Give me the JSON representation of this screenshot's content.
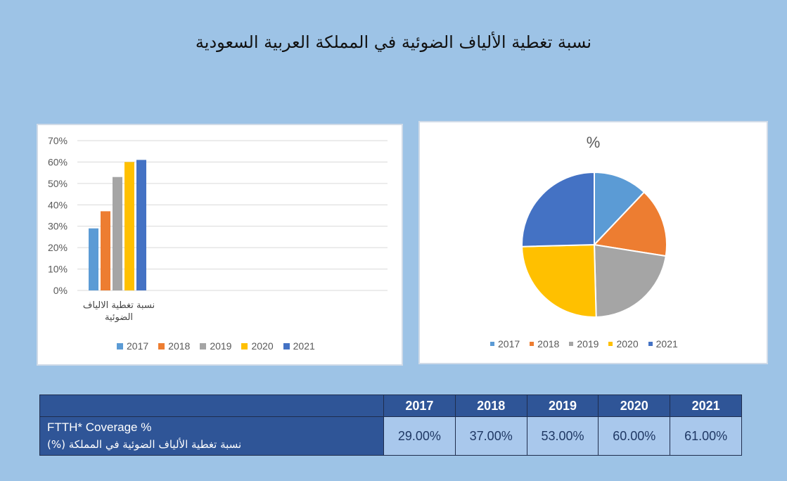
{
  "title": "نسبة تغطية الألياف الضوئية في المملكة العربية السعودية",
  "colors": {
    "2017": "#5b9bd5",
    "2018": "#ed7d31",
    "2019": "#a5a5a5",
    "2020": "#ffc000",
    "2021": "#4472c4",
    "background": "#9dc3e6",
    "table_header": "#2f5597",
    "table_cell": "#a9c8ec"
  },
  "chart_data": [
    {
      "type": "bar",
      "categories": [
        "نسبة تغطية الالياف الضوئية"
      ],
      "series": [
        {
          "name": "2017",
          "values": [
            29
          ]
        },
        {
          "name": "2018",
          "values": [
            37
          ]
        },
        {
          "name": "2019",
          "values": [
            53
          ]
        },
        {
          "name": "2020",
          "values": [
            60
          ]
        },
        {
          "name": "2021",
          "values": [
            61
          ]
        }
      ],
      "y_ticks": [
        "0%",
        "10%",
        "20%",
        "30%",
        "40%",
        "50%",
        "60%",
        "70%"
      ],
      "ylim": [
        0,
        70
      ],
      "grid": true,
      "legend": "bottom"
    },
    {
      "type": "pie",
      "title": "%",
      "labels": [
        "2017",
        "2018",
        "2019",
        "2020",
        "2021"
      ],
      "values": [
        29,
        37,
        53,
        60,
        61
      ],
      "legend": "bottom"
    }
  ],
  "table": {
    "headers": [
      "2017",
      "2018",
      "2019",
      "2020",
      "2021"
    ],
    "row_label_en": "FTTH* Coverage %",
    "row_label_ar": "نسبة تغطية الألياف الضوئية في المملكة (%)",
    "values": [
      "29.00%",
      "37.00%",
      "53.00%",
      "60.00%",
      "61.00%"
    ]
  }
}
